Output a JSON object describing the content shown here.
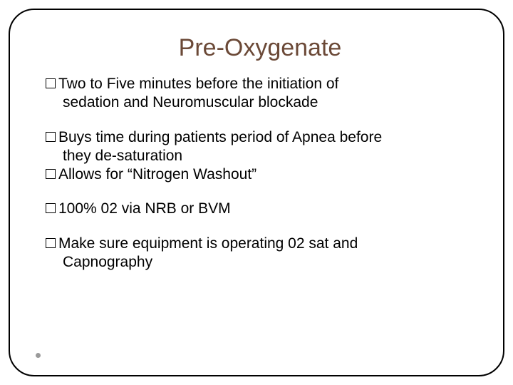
{
  "slide": {
    "title": "Pre-Oxygenate",
    "title_color": "#6b4937",
    "title_fontsize": 34,
    "body_fontsize": 21,
    "body_color": "#000000",
    "border_color": "#000000",
    "border_radius": 36,
    "background_color": "#ffffff",
    "dot_color": "#9a9a9a",
    "bullets": [
      {
        "line1": "Two to Five minutes before the initiation of",
        "line2": "sedation and Neuromuscular blockade"
      },
      {
        "line1": "Buys time during patients period of Apnea before",
        "line2": "they de-saturation"
      },
      {
        "line1": "Allows for “Nitrogen Washout”"
      },
      {
        "line1": " 100% 02 via NRB or BVM"
      },
      {
        "line1": "Make sure equipment is operating 02 sat and",
        "line2": "Capnography"
      }
    ]
  }
}
